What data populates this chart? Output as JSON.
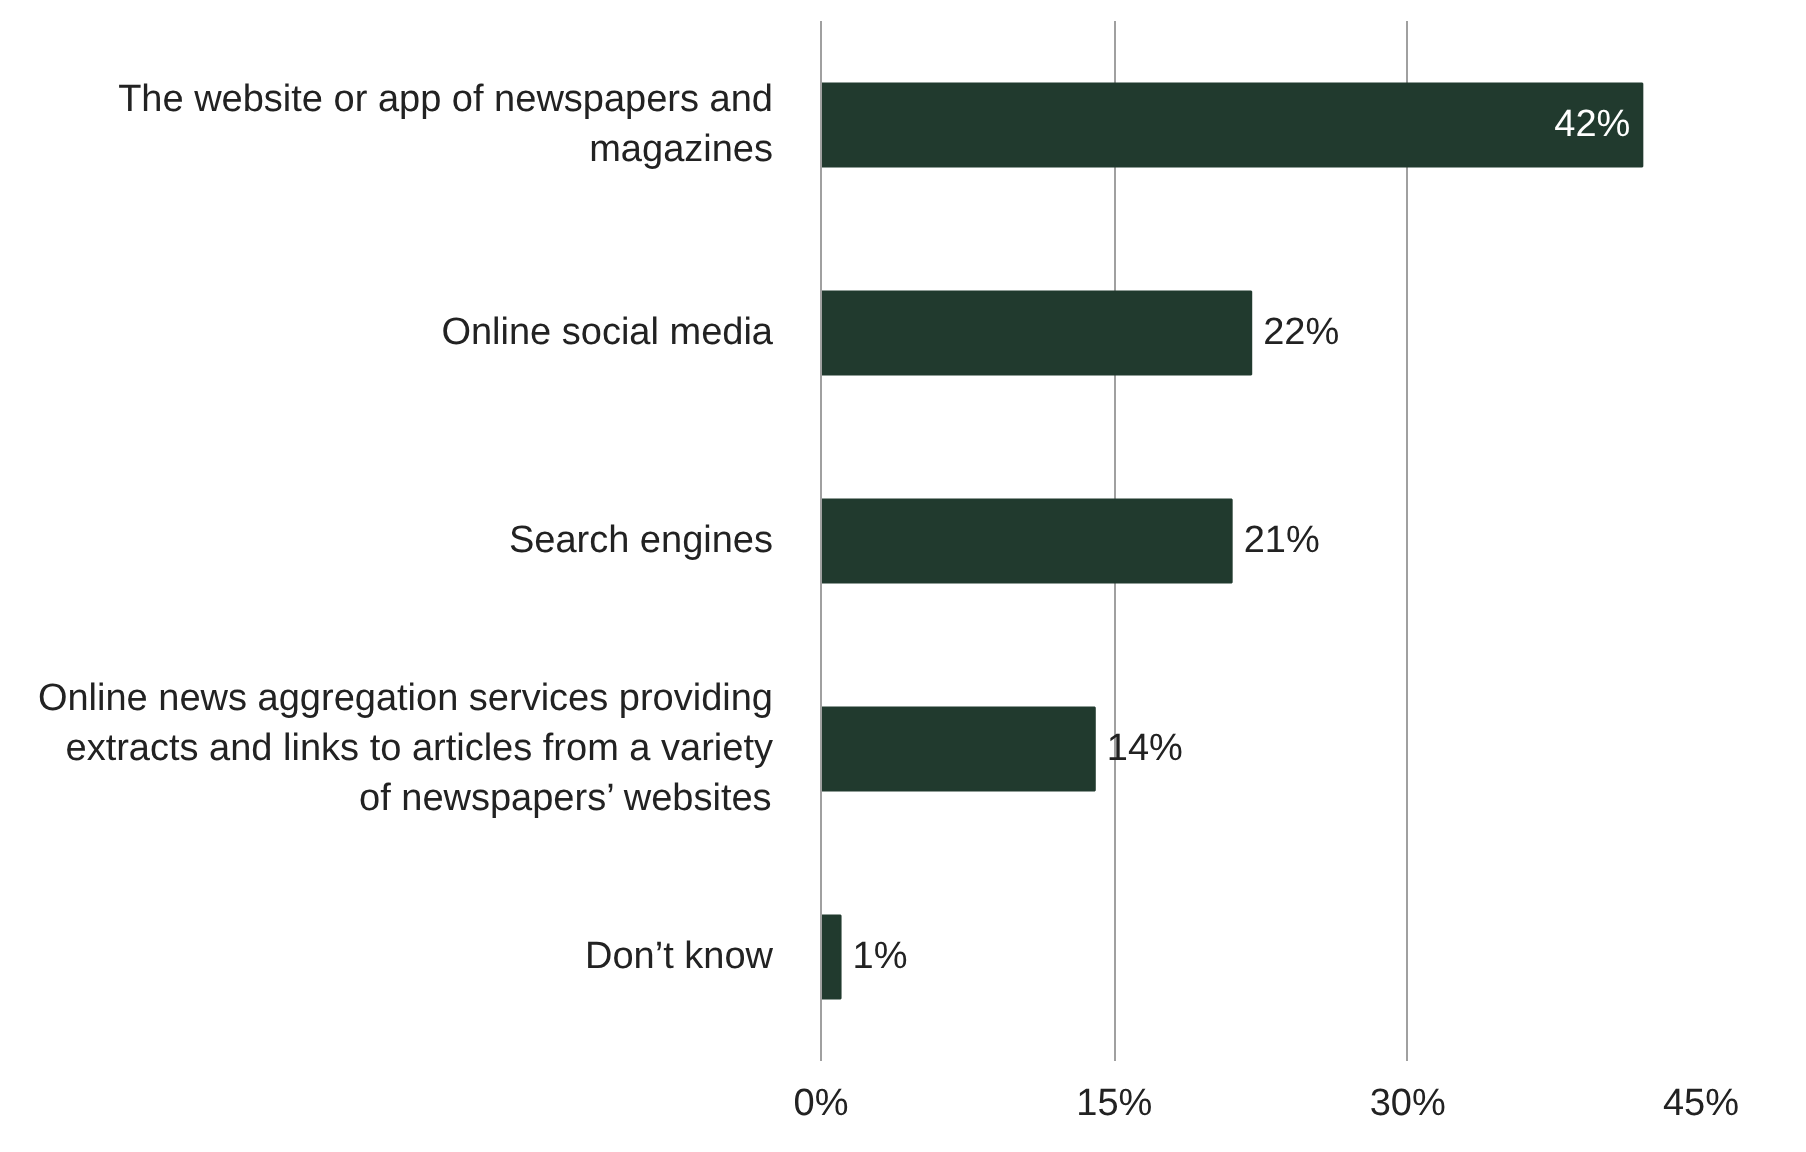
{
  "chart_data": {
    "type": "bar",
    "orientation": "horizontal",
    "categories": [
      "The website or app of newspapers and magazines",
      "Online social media",
      "Search engines",
      "Online news aggregation services providing extracts and links to articles from a variety of newspapers’ websites",
      "Don’t know"
    ],
    "values": [
      42,
      22,
      21,
      14,
      1
    ],
    "color": "#213a2e",
    "value_labels": [
      "42%",
      "22%",
      "21%",
      "14%",
      "1%"
    ],
    "xlim": [
      0,
      45
    ],
    "xticks": [
      {
        "value": 0,
        "label": "0%"
      },
      {
        "value": 15,
        "label": "15%"
      },
      {
        "value": 30,
        "label": "30%"
      },
      {
        "value": 45,
        "label": "45%"
      }
    ],
    "grid": "x"
  }
}
